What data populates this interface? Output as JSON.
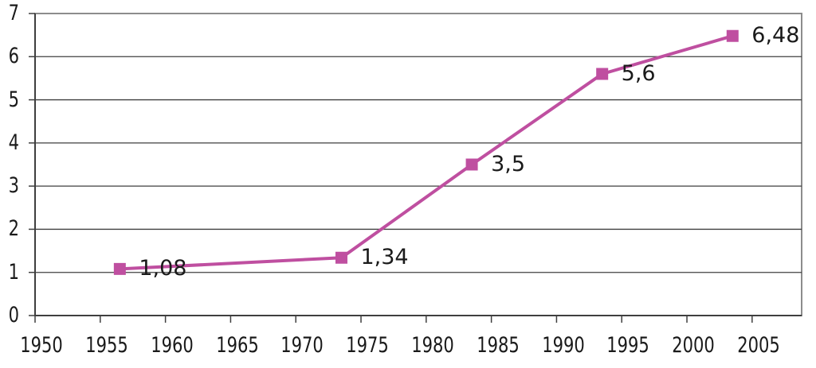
{
  "chart_data": {
    "type": "line",
    "title": "",
    "xlabel": "",
    "ylabel": "",
    "legend": "none",
    "grid": "horizontal",
    "marker": "square",
    "background_color": "#ffffff",
    "series_color": "#BF4FA0",
    "gridline_color": "#3F3F3F",
    "frame_color": "#8C8C8C",
    "text_color": "#1a1a1a",
    "x": [
      1956,
      1973,
      1983,
      1993,
      2003
    ],
    "values": [
      1.08,
      1.34,
      3.5,
      5.6,
      6.48
    ],
    "point_labels": [
      "1,08",
      "1,34",
      "3,5",
      "5,6",
      "6,48"
    ],
    "x_ticks": [
      1950,
      1955,
      1960,
      1965,
      1970,
      1975,
      1980,
      1985,
      1990,
      1995,
      2000,
      2005
    ],
    "y_ticks": [
      0,
      1,
      2,
      3,
      4,
      5,
      6,
      7
    ],
    "xlim": [
      1950,
      2008.8
    ],
    "ylim": [
      0,
      7
    ],
    "category_offset": 0.5
  }
}
